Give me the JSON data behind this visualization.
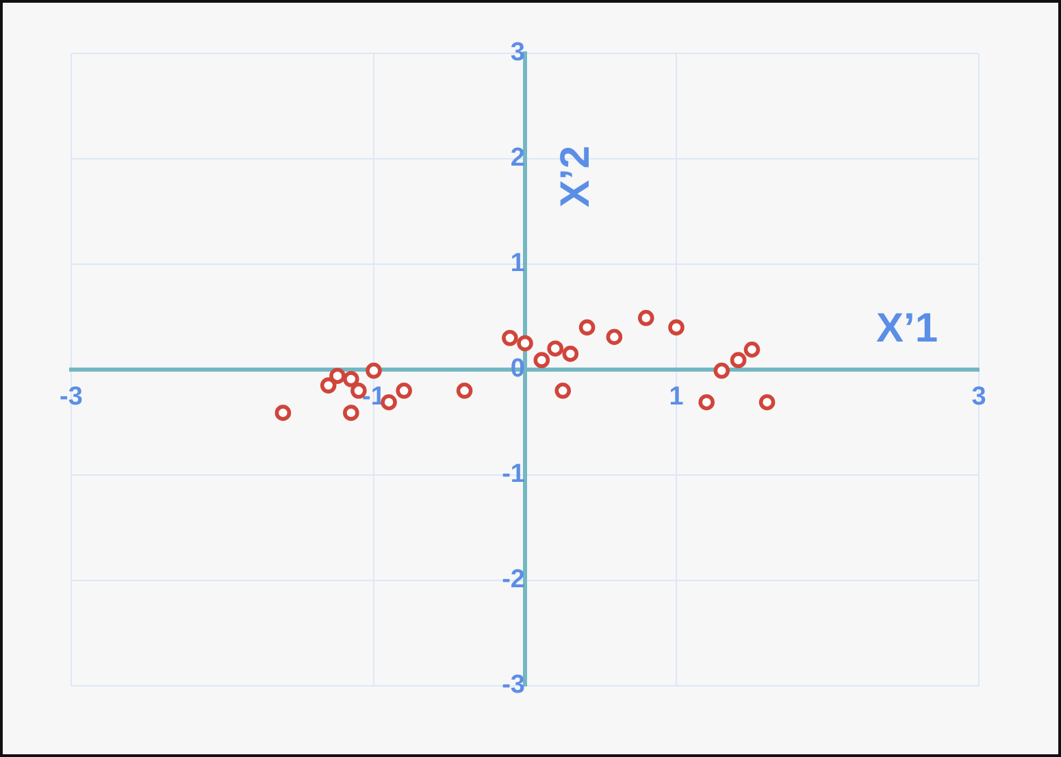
{
  "chart_data": {
    "type": "scatter",
    "xlabel": "X’1",
    "ylabel": "X’2",
    "x": [
      -1.6,
      -1.3,
      -1.24,
      -1.15,
      -1.1,
      -1.15,
      -1.0,
      -0.9,
      -0.8,
      -0.4,
      -0.1,
      0.0,
      0.11,
      0.2,
      0.3,
      0.25,
      0.41,
      0.59,
      0.8,
      1.0,
      1.2,
      1.3,
      1.41,
      1.5,
      1.6
    ],
    "values": [
      -0.41,
      -0.15,
      -0.06,
      -0.09,
      -0.2,
      -0.41,
      -0.01,
      -0.31,
      -0.2,
      -0.2,
      0.3,
      0.25,
      0.09,
      0.2,
      0.15,
      -0.2,
      0.4,
      0.31,
      0.49,
      0.4,
      -0.31,
      -0.01,
      0.09,
      0.19,
      -0.31
    ],
    "color": "#d0453a",
    "marker": "circle",
    "grid": true,
    "legend": false,
    "xlim": [
      -3,
      3
    ],
    "ylim": [
      -3,
      3
    ],
    "xticks": [
      -3,
      -1,
      {
        "value": 0,
        "label": null
      },
      1,
      3
    ],
    "yticks": [
      -3,
      -2,
      -1,
      0,
      1,
      2,
      3
    ]
  }
}
